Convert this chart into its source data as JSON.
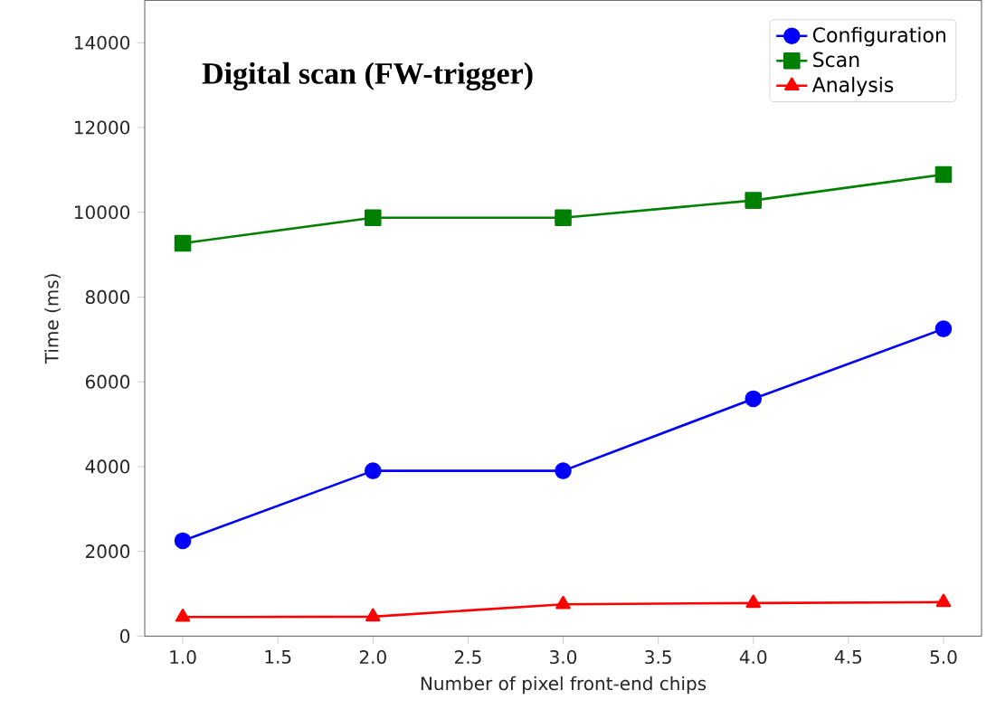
{
  "chart_data": {
    "type": "line",
    "title": "Digital scan (FW-trigger)",
    "xlabel": "Number of pixel front-end chips",
    "ylabel": "Time (ms)",
    "x": [
      1.0,
      2.0,
      3.0,
      4.0,
      5.0
    ],
    "series": [
      {
        "name": "Configuration",
        "color": "#0000ff",
        "marker": "circle",
        "values": [
          2250,
          3900,
          3900,
          5600,
          7250
        ]
      },
      {
        "name": "Scan",
        "color": "#008000",
        "marker": "square",
        "values": [
          9270,
          9870,
          9870,
          10280,
          10890
        ]
      },
      {
        "name": "Analysis",
        "color": "#ff0000",
        "marker": "triangle",
        "values": [
          450,
          460,
          750,
          780,
          800
        ]
      }
    ],
    "xlim": [
      0.8,
      5.2
    ],
    "ylim": [
      0,
      15000
    ],
    "xticks": [
      {
        "value": 1.0,
        "label": "1.0"
      },
      {
        "value": 1.5,
        "label": "1.5"
      },
      {
        "value": 2.0,
        "label": "2.0"
      },
      {
        "value": 2.5,
        "label": "2.5"
      },
      {
        "value": 3.0,
        "label": "3.0"
      },
      {
        "value": 3.5,
        "label": "3.5"
      },
      {
        "value": 4.0,
        "label": "4.0"
      },
      {
        "value": 4.5,
        "label": "4.5"
      },
      {
        "value": 5.0,
        "label": "5.0"
      }
    ],
    "yticks": [
      0,
      2000,
      4000,
      6000,
      8000,
      10000,
      12000,
      14000
    ],
    "legend": "top right",
    "grid": false,
    "line_style": "solid"
  }
}
